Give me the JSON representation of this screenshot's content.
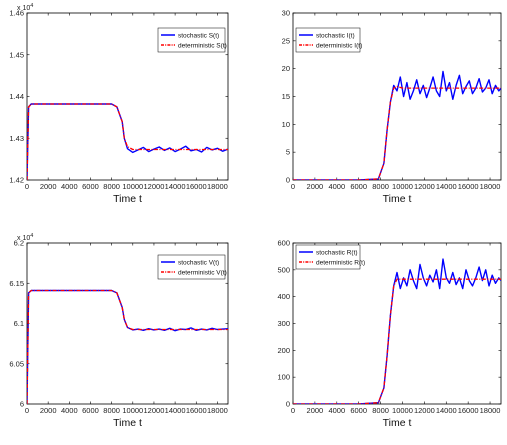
{
  "chart_data": [
    {
      "type": "line",
      "panel": "top-left",
      "xlabel": "Time t",
      "ylabel": "",
      "xlim": [
        0,
        19000
      ],
      "ylim": [
        14200,
        14600
      ],
      "y_exponent_label": "x 10",
      "y_exponent_power": "4",
      "xticks": [
        "0",
        "2000",
        "4000",
        "6000",
        "8000",
        "10000",
        "12000",
        "14000",
        "16000",
        "18000"
      ],
      "yticks": [
        "1.42",
        "1.43",
        "1.44",
        "1.45",
        "1.46"
      ],
      "grid": false,
      "legend_position": "top-right",
      "series": [
        {
          "name": "stochastic S(t)",
          "color": "#0000ff",
          "style": "solid",
          "x": [
            0,
            150,
            400,
            1000,
            2000,
            4000,
            6000,
            8000,
            8500,
            9000,
            9200,
            9500,
            10000,
            10500,
            11000,
            11500,
            12000,
            12500,
            13000,
            13500,
            14000,
            14500,
            15000,
            15500,
            16000,
            16500,
            17000,
            17500,
            18000,
            18500,
            19000
          ],
          "y": [
            14200,
            14375,
            14382,
            14382,
            14382,
            14382,
            14382,
            14382,
            14375,
            14340,
            14300,
            14275,
            14266,
            14272,
            14278,
            14268,
            14274,
            14279,
            14271,
            14277,
            14268,
            14274,
            14281,
            14270,
            14273,
            14267,
            14278,
            14272,
            14276,
            14269,
            14274
          ]
        },
        {
          "name": "deterministic S(t)",
          "color": "#ff0000",
          "style": "dashdot",
          "x": [
            0,
            150,
            400,
            1000,
            2000,
            4000,
            6000,
            8000,
            8500,
            9000,
            9200,
            9500,
            10000,
            12000,
            14000,
            16000,
            18000,
            19000
          ],
          "y": [
            14200,
            14375,
            14382,
            14382,
            14382,
            14382,
            14382,
            14382,
            14375,
            14340,
            14300,
            14280,
            14273,
            14273,
            14273,
            14273,
            14273,
            14273
          ]
        }
      ]
    },
    {
      "type": "line",
      "panel": "top-right",
      "xlabel": "Time t",
      "ylabel": "",
      "xlim": [
        0,
        19000
      ],
      "ylim": [
        0,
        30
      ],
      "xticks": [
        "0",
        "2000",
        "4000",
        "6000",
        "8000",
        "10000",
        "12000",
        "14000",
        "16000",
        "18000"
      ],
      "yticks": [
        "0",
        "5",
        "10",
        "15",
        "20",
        "25",
        "30"
      ],
      "grid": false,
      "legend_position": "top-left",
      "series": [
        {
          "name": "stochastic I(t)",
          "color": "#0000ff",
          "style": "solid",
          "x": [
            0,
            2000,
            4000,
            6000,
            7800,
            8300,
            8600,
            8900,
            9200,
            9500,
            9800,
            10100,
            10400,
            10700,
            11000,
            11300,
            11600,
            11900,
            12200,
            12500,
            12800,
            13100,
            13400,
            13700,
            14000,
            14300,
            14600,
            14900,
            15200,
            15500,
            15800,
            16100,
            16400,
            16700,
            17000,
            17300,
            17600,
            17900,
            18200,
            18500,
            18800,
            19000
          ],
          "y": [
            0,
            0,
            0,
            0,
            0.2,
            3,
            9,
            14,
            17,
            16,
            18.5,
            15,
            17.5,
            14.5,
            16,
            18,
            15.5,
            17,
            14.8,
            16.5,
            18.5,
            16,
            15,
            19.5,
            16,
            17.5,
            14.5,
            17,
            18.8,
            15.5,
            16.8,
            17.8,
            15.5,
            16.5,
            18.2,
            15.8,
            16.5,
            18,
            15.5,
            17,
            16,
            16.5
          ]
        },
        {
          "name": "deterministic I(t)",
          "color": "#ff0000",
          "style": "dashdot",
          "x": [
            0,
            2000,
            4000,
            6000,
            7800,
            8300,
            8600,
            8900,
            9200,
            9500,
            10000,
            12000,
            14000,
            16000,
            18000,
            19000
          ],
          "y": [
            0,
            0,
            0,
            0,
            0.2,
            3,
            9,
            14,
            16.5,
            16.8,
            16.5,
            16.5,
            16.5,
            16.5,
            16.5,
            16.5
          ]
        }
      ]
    },
    {
      "type": "line",
      "panel": "bottom-left",
      "xlabel": "Time t",
      "ylabel": "",
      "xlim": [
        0,
        19000
      ],
      "ylim": [
        60000,
        62000
      ],
      "y_exponent_label": "x 10",
      "y_exponent_power": "4",
      "xticks": [
        "0",
        "2000",
        "4000",
        "6000",
        "8000",
        "10000",
        "12000",
        "14000",
        "16000",
        "18000"
      ],
      "yticks": [
        "6",
        "6.05",
        "6.1",
        "6.15",
        "6.2"
      ],
      "grid": false,
      "legend_position": "top-right",
      "series": [
        {
          "name": "stochastic V(t)",
          "color": "#0000ff",
          "style": "solid",
          "x": [
            0,
            150,
            400,
            1000,
            2000,
            4000,
            6000,
            8000,
            8500,
            9000,
            9200,
            9500,
            10000,
            10500,
            11000,
            11500,
            12000,
            12500,
            13000,
            13500,
            14000,
            14500,
            15000,
            15500,
            16000,
            16500,
            17000,
            17500,
            18000,
            18500,
            19000
          ],
          "y": [
            60000,
            61380,
            61410,
            61410,
            61410,
            61410,
            61410,
            61410,
            61380,
            61200,
            61050,
            60950,
            60920,
            60930,
            60915,
            60935,
            60920,
            60930,
            60915,
            60940,
            60910,
            60930,
            60925,
            60945,
            60915,
            60930,
            60920,
            60940,
            60925,
            60930,
            60935
          ]
        },
        {
          "name": "deterministic V(t)",
          "color": "#ff0000",
          "style": "dashdot",
          "x": [
            0,
            150,
            400,
            1000,
            2000,
            4000,
            6000,
            8000,
            8500,
            9000,
            9200,
            9500,
            10000,
            12000,
            14000,
            16000,
            18000,
            19000
          ],
          "y": [
            60000,
            61380,
            61410,
            61410,
            61410,
            61410,
            61410,
            61410,
            61380,
            61200,
            61050,
            60950,
            60925,
            60925,
            60925,
            60925,
            60925,
            60925
          ]
        }
      ]
    },
    {
      "type": "line",
      "panel": "bottom-right",
      "xlabel": "Time t",
      "ylabel": "",
      "xlim": [
        0,
        19000
      ],
      "ylim": [
        0,
        600
      ],
      "xticks": [
        "0",
        "2000",
        "4000",
        "6000",
        "8000",
        "10000",
        "12000",
        "14000",
        "16000",
        "18000"
      ],
      "yticks": [
        "0",
        "100",
        "200",
        "300",
        "400",
        "500",
        "600"
      ],
      "grid": false,
      "legend_position": "top-left",
      "series": [
        {
          "name": "stochastic R(t)",
          "color": "#0000ff",
          "style": "solid",
          "x": [
            0,
            2000,
            4000,
            6000,
            7800,
            8300,
            8600,
            8900,
            9200,
            9500,
            9800,
            10100,
            10400,
            10700,
            11000,
            11300,
            11600,
            11900,
            12200,
            12500,
            12800,
            13100,
            13400,
            13700,
            14000,
            14300,
            14600,
            14900,
            15200,
            15500,
            15800,
            16100,
            16400,
            16700,
            17000,
            17300,
            17600,
            17900,
            18200,
            18500,
            18800,
            19000
          ],
          "y": [
            0,
            0,
            0,
            0,
            5,
            60,
            180,
            330,
            440,
            490,
            430,
            470,
            440,
            500,
            460,
            430,
            520,
            470,
            440,
            480,
            455,
            500,
            430,
            540,
            470,
            450,
            490,
            445,
            470,
            430,
            500,
            460,
            440,
            470,
            510,
            460,
            500,
            440,
            480,
            450,
            470,
            460
          ]
        },
        {
          "name": "deterministic R(t)",
          "color": "#ff0000",
          "style": "dashdot",
          "x": [
            0,
            2000,
            4000,
            6000,
            7800,
            8300,
            8600,
            8900,
            9200,
            9500,
            10000,
            12000,
            14000,
            16000,
            18000,
            19000
          ],
          "y": [
            0,
            0,
            0,
            0,
            5,
            60,
            180,
            330,
            440,
            465,
            465,
            465,
            465,
            465,
            465,
            465
          ]
        }
      ]
    }
  ]
}
